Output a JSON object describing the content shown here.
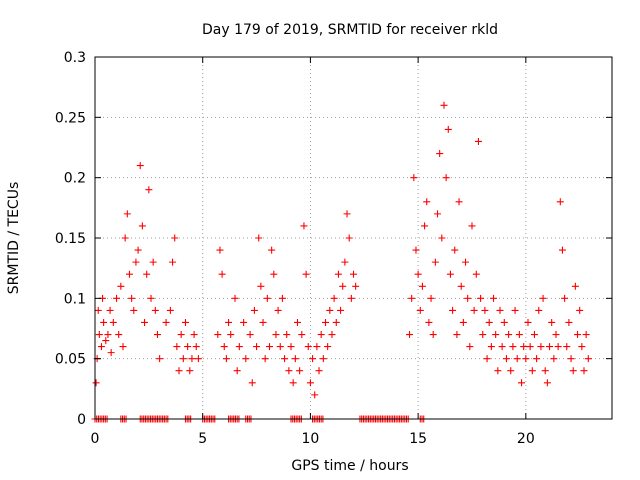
{
  "chart_data": {
    "type": "scatter",
    "title": "Day 179 of 2019, SRMTID for receiver rkld",
    "xlabel": "GPS time / hours",
    "ylabel": "SRMTID / TECUs",
    "xlim": [
      0,
      24
    ],
    "ylim": [
      0,
      0.3
    ],
    "x_ticks": [
      0,
      5,
      10,
      15,
      20
    ],
    "x_tick_labels": [
      "0",
      "5",
      "10",
      "15",
      "20"
    ],
    "y_ticks": [
      0,
      0.05,
      0.1,
      0.15,
      0.2,
      0.25,
      0.3
    ],
    "y_tick_labels": [
      "0",
      "0.05",
      "0.1",
      "0.15",
      "0.2",
      "0.25",
      "0.3"
    ],
    "grid": true,
    "marker": "+",
    "color": "#ff0000",
    "series": [
      {
        "name": "SRMTID",
        "points": [
          [
            0.05,
            0.03
          ],
          [
            0.1,
            0.05
          ],
          [
            0.15,
            0.09
          ],
          [
            0.2,
            0.07
          ],
          [
            0.3,
            0.06
          ],
          [
            0.35,
            0.1
          ],
          [
            0.4,
            0.08
          ],
          [
            0.5,
            0.065
          ],
          [
            0.6,
            0.07
          ],
          [
            0.7,
            0.09
          ],
          [
            0.75,
            0.055
          ],
          [
            0.85,
            0.08
          ],
          [
            1.0,
            0.1
          ],
          [
            1.1,
            0.07
          ],
          [
            1.2,
            0.11
          ],
          [
            1.3,
            0.06
          ],
          [
            1.4,
            0.15
          ],
          [
            1.5,
            0.17
          ],
          [
            1.6,
            0.12
          ],
          [
            1.7,
            0.1
          ],
          [
            1.8,
            0.09
          ],
          [
            1.9,
            0.13
          ],
          [
            2.0,
            0.14
          ],
          [
            2.1,
            0.21
          ],
          [
            2.2,
            0.16
          ],
          [
            2.3,
            0.08
          ],
          [
            2.4,
            0.12
          ],
          [
            2.5,
            0.19
          ],
          [
            2.6,
            0.1
          ],
          [
            2.7,
            0.13
          ],
          [
            2.8,
            0.09
          ],
          [
            2.9,
            0.07
          ],
          [
            3.0,
            0.05
          ],
          [
            3.3,
            0.08
          ],
          [
            3.5,
            0.09
          ],
          [
            3.6,
            0.13
          ],
          [
            3.7,
            0.15
          ],
          [
            3.8,
            0.06
          ],
          [
            3.9,
            0.04
          ],
          [
            4.0,
            0.07
          ],
          [
            4.1,
            0.05
          ],
          [
            4.2,
            0.08
          ],
          [
            4.3,
            0.06
          ],
          [
            4.4,
            0.04
          ],
          [
            4.5,
            0.05
          ],
          [
            4.6,
            0.07
          ],
          [
            4.7,
            0.06
          ],
          [
            4.8,
            0.05
          ],
          [
            5.7,
            0.07
          ],
          [
            5.8,
            0.14
          ],
          [
            5.9,
            0.12
          ],
          [
            6.0,
            0.06
          ],
          [
            6.1,
            0.05
          ],
          [
            6.2,
            0.08
          ],
          [
            6.3,
            0.07
          ],
          [
            6.5,
            0.1
          ],
          [
            6.6,
            0.04
          ],
          [
            6.7,
            0.06
          ],
          [
            6.9,
            0.08
          ],
          [
            7.0,
            0.05
          ],
          [
            7.2,
            0.07
          ],
          [
            7.3,
            0.03
          ],
          [
            7.4,
            0.09
          ],
          [
            7.5,
            0.06
          ],
          [
            7.6,
            0.15
          ],
          [
            7.7,
            0.11
          ],
          [
            7.8,
            0.08
          ],
          [
            7.9,
            0.05
          ],
          [
            8.0,
            0.1
          ],
          [
            8.1,
            0.06
          ],
          [
            8.2,
            0.14
          ],
          [
            8.3,
            0.12
          ],
          [
            8.4,
            0.07
          ],
          [
            8.5,
            0.09
          ],
          [
            8.6,
            0.06
          ],
          [
            8.7,
            0.1
          ],
          [
            8.8,
            0.05
          ],
          [
            8.9,
            0.07
          ],
          [
            9.0,
            0.04
          ],
          [
            9.1,
            0.06
          ],
          [
            9.2,
            0.03
          ],
          [
            9.3,
            0.05
          ],
          [
            9.4,
            0.08
          ],
          [
            9.5,
            0.04
          ],
          [
            9.6,
            0.07
          ],
          [
            9.7,
            0.16
          ],
          [
            9.8,
            0.12
          ],
          [
            9.9,
            0.06
          ],
          [
            10.0,
            0.03
          ],
          [
            10.1,
            0.05
          ],
          [
            10.2,
            0.02
          ],
          [
            10.3,
            0.06
          ],
          [
            10.4,
            0.04
          ],
          [
            10.5,
            0.07
          ],
          [
            10.6,
            0.05
          ],
          [
            10.7,
            0.08
          ],
          [
            10.8,
            0.06
          ],
          [
            10.9,
            0.09
          ],
          [
            11.0,
            0.07
          ],
          [
            11.1,
            0.1
          ],
          [
            11.2,
            0.08
          ],
          [
            11.3,
            0.12
          ],
          [
            11.4,
            0.09
          ],
          [
            11.5,
            0.11
          ],
          [
            11.6,
            0.13
          ],
          [
            11.7,
            0.17
          ],
          [
            11.8,
            0.15
          ],
          [
            11.9,
            0.1
          ],
          [
            12.0,
            0.12
          ],
          [
            12.1,
            0.11
          ],
          [
            14.6,
            0.07
          ],
          [
            14.7,
            0.1
          ],
          [
            14.8,
            0.2
          ],
          [
            14.9,
            0.14
          ],
          [
            15.0,
            0.12
          ],
          [
            15.1,
            0.09
          ],
          [
            15.2,
            0.11
          ],
          [
            15.3,
            0.16
          ],
          [
            15.4,
            0.18
          ],
          [
            15.5,
            0.08
          ],
          [
            15.6,
            0.1
          ],
          [
            15.7,
            0.07
          ],
          [
            15.8,
            0.13
          ],
          [
            15.9,
            0.17
          ],
          [
            16.0,
            0.22
          ],
          [
            16.1,
            0.15
          ],
          [
            16.2,
            0.26
          ],
          [
            16.3,
            0.2
          ],
          [
            16.4,
            0.24
          ],
          [
            16.5,
            0.12
          ],
          [
            16.6,
            0.09
          ],
          [
            16.7,
            0.14
          ],
          [
            16.8,
            0.07
          ],
          [
            16.9,
            0.18
          ],
          [
            17.0,
            0.11
          ],
          [
            17.1,
            0.08
          ],
          [
            17.2,
            0.13
          ],
          [
            17.3,
            0.1
          ],
          [
            17.4,
            0.06
          ],
          [
            17.5,
            0.16
          ],
          [
            17.6,
            0.09
          ],
          [
            17.7,
            0.12
          ],
          [
            17.8,
            0.23
          ],
          [
            17.9,
            0.1
          ],
          [
            18.0,
            0.07
          ],
          [
            18.1,
            0.09
          ],
          [
            18.2,
            0.05
          ],
          [
            18.3,
            0.08
          ],
          [
            18.4,
            0.06
          ],
          [
            18.5,
            0.1
          ],
          [
            18.6,
            0.07
          ],
          [
            18.7,
            0.04
          ],
          [
            18.8,
            0.09
          ],
          [
            18.9,
            0.06
          ],
          [
            19.0,
            0.08
          ],
          [
            19.1,
            0.05
          ],
          [
            19.2,
            0.07
          ],
          [
            19.3,
            0.04
          ],
          [
            19.4,
            0.06
          ],
          [
            19.5,
            0.09
          ],
          [
            19.6,
            0.05
          ],
          [
            19.7,
            0.07
          ],
          [
            19.8,
            0.03
          ],
          [
            19.9,
            0.06
          ],
          [
            20.0,
            0.05
          ],
          [
            20.1,
            0.08
          ],
          [
            20.2,
            0.06
          ],
          [
            20.3,
            0.04
          ],
          [
            20.4,
            0.07
          ],
          [
            20.5,
            0.05
          ],
          [
            20.6,
            0.09
          ],
          [
            20.7,
            0.06
          ],
          [
            20.8,
            0.1
          ],
          [
            20.9,
            0.04
          ],
          [
            21.0,
            0.03
          ],
          [
            21.1,
            0.06
          ],
          [
            21.2,
            0.08
          ],
          [
            21.3,
            0.05
          ],
          [
            21.4,
            0.07
          ],
          [
            21.5,
            0.06
          ],
          [
            21.6,
            0.18
          ],
          [
            21.7,
            0.14
          ],
          [
            21.8,
            0.1
          ],
          [
            21.9,
            0.06
          ],
          [
            22.0,
            0.08
          ],
          [
            22.1,
            0.05
          ],
          [
            22.2,
            0.04
          ],
          [
            22.3,
            0.11
          ],
          [
            22.4,
            0.07
          ],
          [
            22.5,
            0.09
          ],
          [
            22.6,
            0.06
          ],
          [
            22.7,
            0.04
          ],
          [
            22.8,
            0.07
          ],
          [
            22.9,
            0.05
          ]
        ]
      }
    ],
    "zero_marker_ranges": [
      [
        0.0,
        0.6
      ],
      [
        1.2,
        1.5
      ],
      [
        2.1,
        3.4
      ],
      [
        4.2,
        4.5
      ],
      [
        5.0,
        5.6
      ],
      [
        6.2,
        6.7
      ],
      [
        7.0,
        7.3
      ],
      [
        9.1,
        9.6
      ],
      [
        10.1,
        10.6
      ],
      [
        12.3,
        14.6
      ],
      [
        15.1,
        15.3
      ]
    ]
  }
}
